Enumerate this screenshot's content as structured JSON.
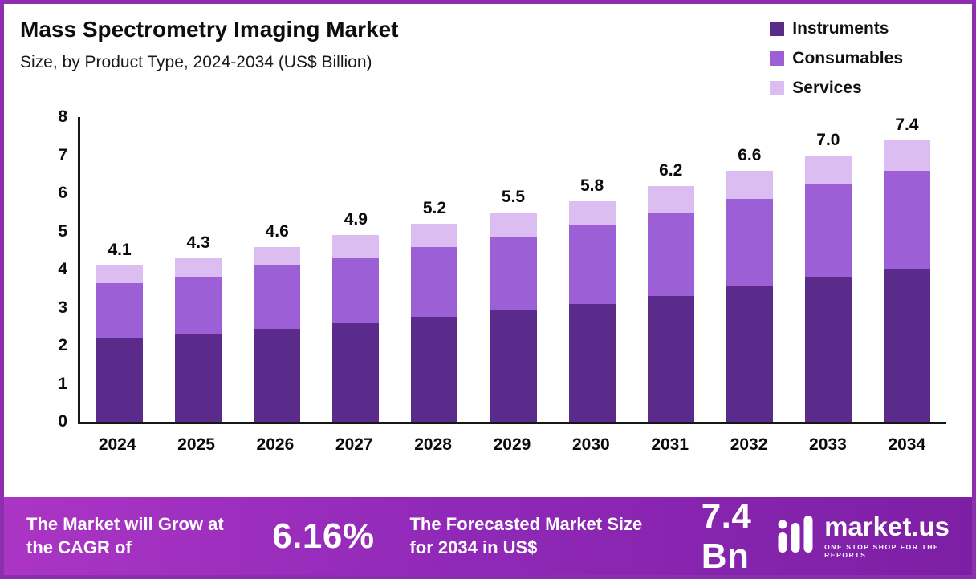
{
  "header": {
    "title": "Mass Spectrometry Imaging Market",
    "subtitle": "Size, by Product Type, 2024-2034 (US$ Billion)"
  },
  "legend": [
    {
      "label": "Instruments",
      "color": "#5a2b8a"
    },
    {
      "label": "Consumables",
      "color": "#9d5fd6"
    },
    {
      "label": "Services",
      "color": "#dcbdf2"
    }
  ],
  "chart_data": {
    "type": "bar",
    "stacked": true,
    "title": "Mass Spectrometry Imaging Market",
    "subtitle": "Size, by Product Type, 2024-2034 (US$ Billion)",
    "xlabel": "",
    "ylabel": "US$ Billion",
    "ylim": [
      0,
      8
    ],
    "yticks": [
      0,
      1,
      2,
      3,
      4,
      5,
      6,
      7,
      8
    ],
    "grid": false,
    "legend_position": "top-right",
    "categories": [
      "2024",
      "2025",
      "2026",
      "2027",
      "2028",
      "2029",
      "2030",
      "2031",
      "2032",
      "2033",
      "2034"
    ],
    "series": [
      {
        "name": "Instruments",
        "color": "#5a2b8a",
        "values": [
          2.2,
          2.3,
          2.45,
          2.6,
          2.75,
          2.95,
          3.1,
          3.3,
          3.55,
          3.8,
          4.0
        ]
      },
      {
        "name": "Consumables",
        "color": "#9d5fd6",
        "values": [
          1.45,
          1.5,
          1.65,
          1.7,
          1.85,
          1.9,
          2.05,
          2.2,
          2.3,
          2.45,
          2.6
        ]
      },
      {
        "name": "Services",
        "color": "#dcbdf2",
        "values": [
          0.45,
          0.5,
          0.5,
          0.6,
          0.6,
          0.65,
          0.65,
          0.7,
          0.75,
          0.75,
          0.8
        ]
      }
    ],
    "totals": [
      4.1,
      4.3,
      4.6,
      4.9,
      5.2,
      5.5,
      5.8,
      6.2,
      6.6,
      7.0,
      7.4
    ]
  },
  "banner": {
    "cagr_label": "The Market will Grow at the CAGR of",
    "cagr_value": "6.16%",
    "forecast_label": "The Forecasted Market Size for 2034 in US$",
    "forecast_value": "7.4 Bn",
    "brand_name": "market.us",
    "brand_tagline": "ONE STOP SHOP FOR THE REPORTS"
  }
}
